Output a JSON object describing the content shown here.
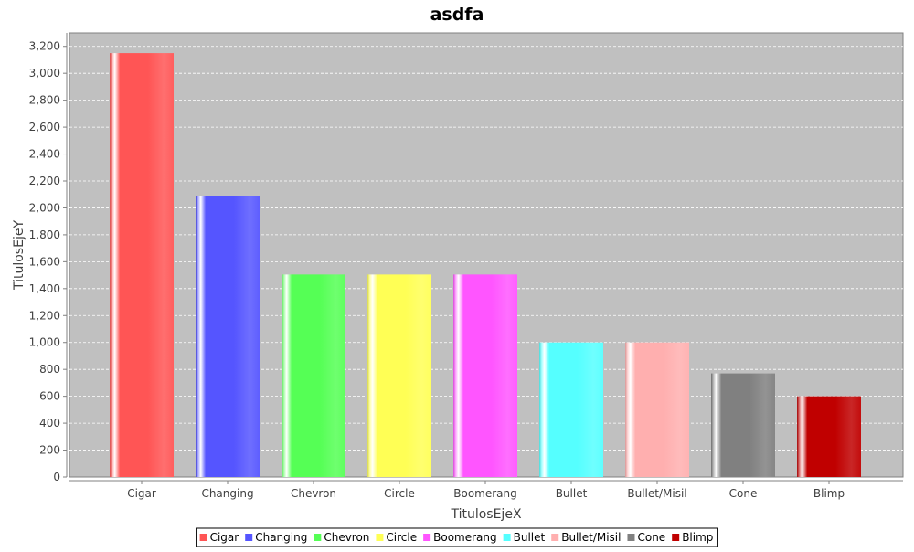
{
  "chart_data": {
    "type": "bar",
    "title": "asdfa",
    "xlabel": "TitulosEjeX",
    "ylabel": "TitulosEjeY",
    "ylim": [
      0,
      3300
    ],
    "yticks": [
      0,
      200,
      400,
      600,
      800,
      1000,
      1200,
      1400,
      1600,
      1800,
      2000,
      2200,
      2400,
      2600,
      2800,
      3000,
      3200
    ],
    "ytick_labels": [
      "0",
      "200",
      "400",
      "600",
      "800",
      "1,000",
      "1,200",
      "1,400",
      "1,600",
      "1,800",
      "2,000",
      "2,200",
      "2,400",
      "2,600",
      "2,800",
      "3,000",
      "3,200"
    ],
    "grid": true,
    "legend_position": "bottom",
    "plot_background": "#c0c0c0",
    "categories": [
      "Cigar",
      "Changing",
      "Chevron",
      "Circle",
      "Boomerang",
      "Bullet",
      "Bullet/Misil",
      "Cone",
      "Blimp"
    ],
    "values": [
      3150,
      2090,
      1505,
      1505,
      1505,
      1000,
      1000,
      770,
      600
    ],
    "colors": [
      "#ff5555",
      "#5555ff",
      "#55ff55",
      "#ffff55",
      "#ff55ff",
      "#55ffff",
      "#ffafaf",
      "#808080",
      "#c00000"
    ],
    "legend": [
      "Cigar",
      "Changing",
      "Chevron",
      "Circle",
      "Boomerang",
      "Bullet",
      "Bullet/Misil",
      "Cone",
      "Blimp"
    ]
  }
}
